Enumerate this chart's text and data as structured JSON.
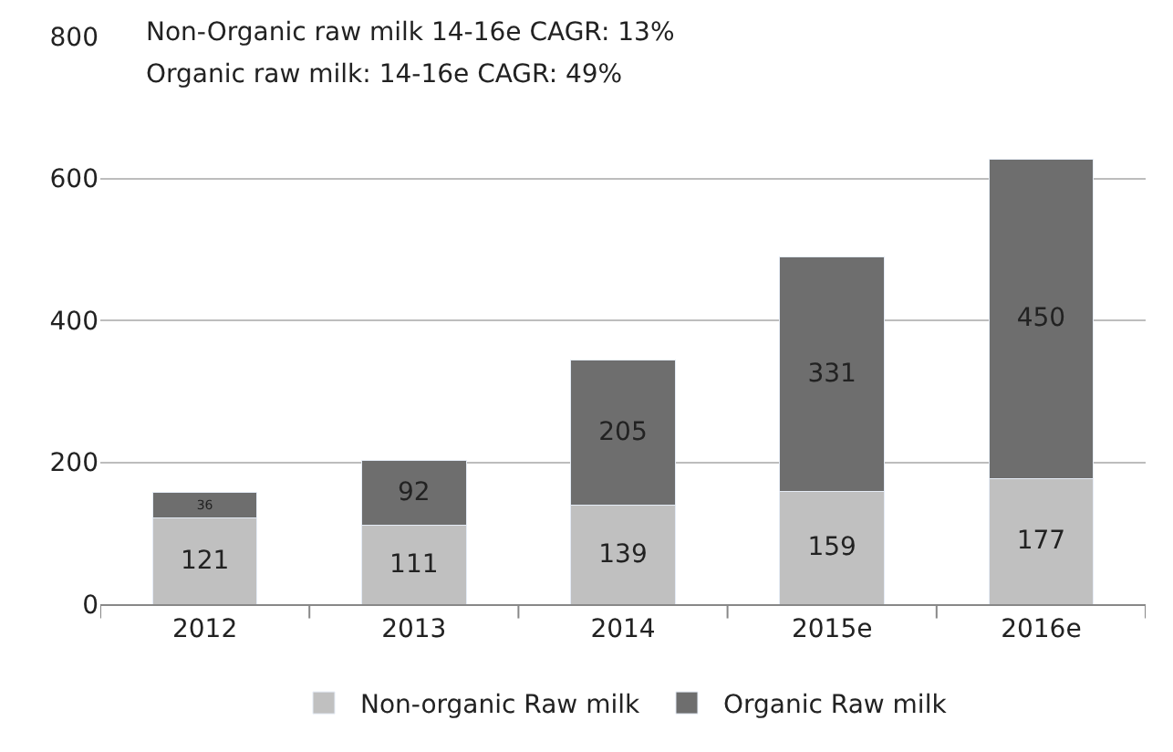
{
  "chart_data": {
    "type": "bar",
    "stacked": true,
    "categories": [
      "2012",
      "2013",
      "2014",
      "2015e",
      "2016e"
    ],
    "series": [
      {
        "name": "Non-organic Raw milk",
        "color": "#c0c0c0",
        "values": [
          121,
          111,
          139,
          159,
          177
        ]
      },
      {
        "name": "Organic Raw milk",
        "color": "#6e6e6e",
        "values": [
          36,
          92,
          205,
          331,
          450
        ]
      }
    ],
    "ylim": [
      0,
      800
    ],
    "yticks": [
      0,
      200,
      400,
      600,
      800
    ],
    "grid": "y",
    "legend": "bottom",
    "data_labels": true,
    "annotations": [
      "Non-Organic raw milk 14-16e CAGR: 13%",
      "Organic raw milk: 14-16e CAGR: 49%"
    ]
  }
}
